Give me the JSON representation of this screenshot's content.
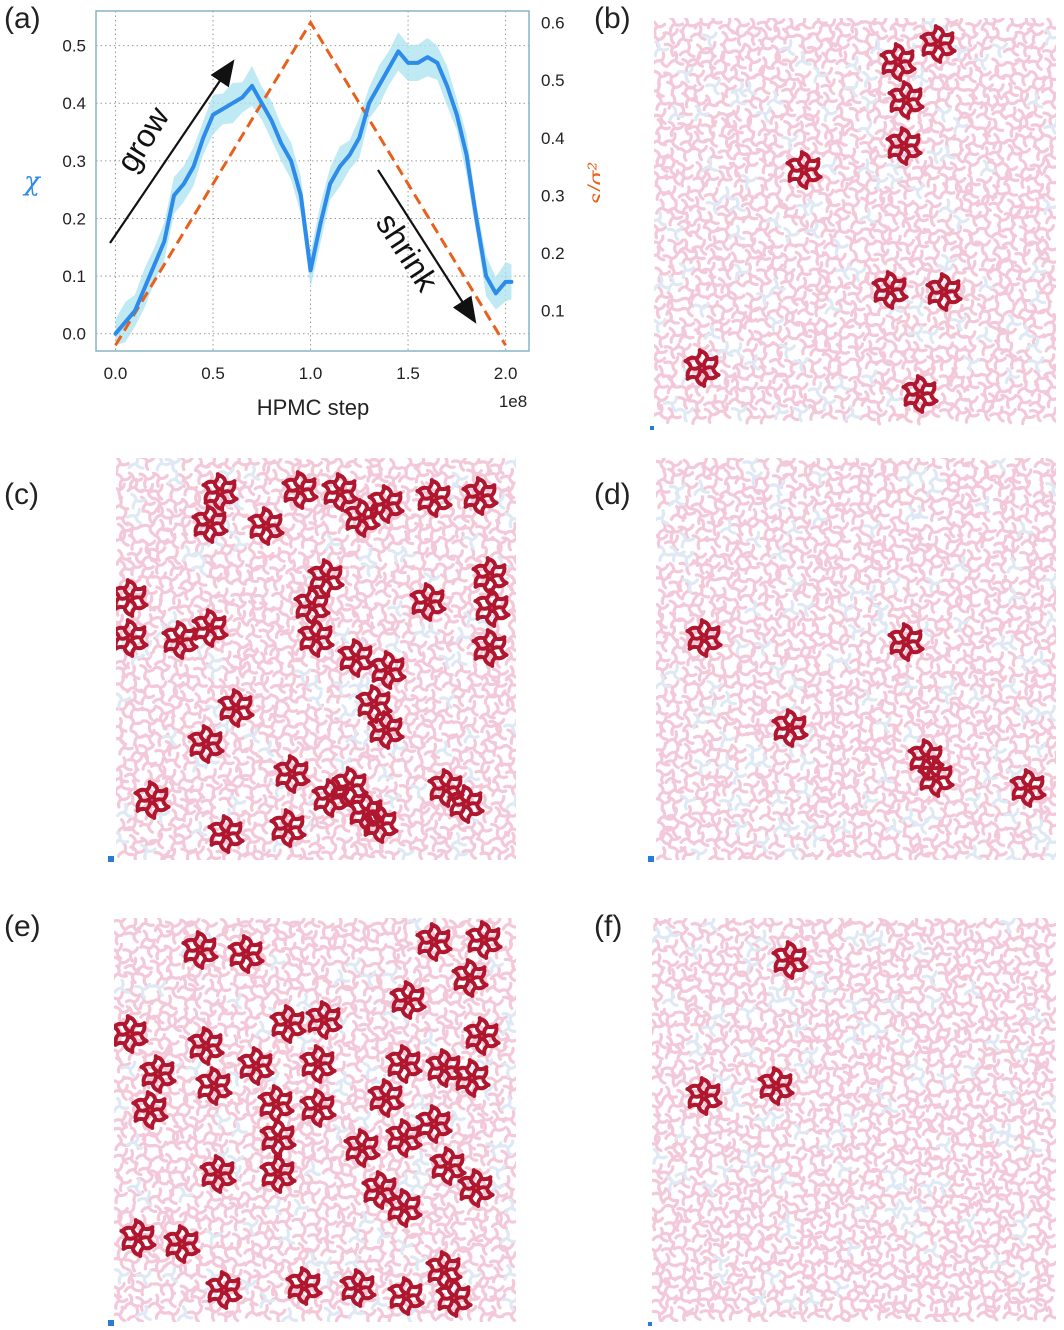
{
  "panel_labels": [
    "(a)",
    "(b)",
    "(c)",
    "(d)",
    "(e)",
    "(f)"
  ],
  "colors": {
    "chi_line": "#2e8bea",
    "chi_band": "#a9e3ef",
    "s_line": "#e8601c",
    "axis_frame": "#87b4c4",
    "grid": "#9a9a9a",
    "cluster": "#b0172e",
    "background_particles": "#f3c9da",
    "background_faint": "#dfe8f5"
  },
  "chart_data": {
    "type": "line",
    "xlabel": "HPMC step",
    "x_multiplier": "1e8",
    "ylabel_left": "χ",
    "ylabel_right": "s/σ²",
    "xlim": [
      -0.1,
      2.12
    ],
    "ylim_left": [
      -0.03,
      0.56
    ],
    "ylim_right": [
      0.03,
      0.62
    ],
    "x_ticks": [
      "0.0",
      "0.5",
      "1.0",
      "1.5",
      "2.0"
    ],
    "y_left_ticks": [
      "0.0",
      "0.1",
      "0.2",
      "0.3",
      "0.4",
      "0.5"
    ],
    "y_right_ticks": [
      "0.1",
      "0.2",
      "0.3",
      "0.4",
      "0.5",
      "0.6"
    ],
    "grid": true,
    "annotations": [
      "grow",
      "shrink"
    ],
    "series": [
      {
        "axis": "left",
        "x": [
          0.0,
          0.05,
          0.1,
          0.15,
          0.2,
          0.25,
          0.3,
          0.35,
          0.4,
          0.45,
          0.5,
          0.55,
          0.6,
          0.65,
          0.7,
          0.75,
          0.8,
          0.85,
          0.9,
          0.95,
          1.0,
          1.05,
          1.1,
          1.15,
          1.2,
          1.25,
          1.3,
          1.35,
          1.4,
          1.45,
          1.5,
          1.55,
          1.6,
          1.65,
          1.7,
          1.75,
          1.8,
          1.85,
          1.9,
          1.95,
          2.0,
          2.03
        ],
        "values": [
          0.0,
          0.02,
          0.04,
          0.08,
          0.12,
          0.16,
          0.24,
          0.26,
          0.29,
          0.34,
          0.38,
          0.39,
          0.4,
          0.41,
          0.43,
          0.4,
          0.37,
          0.33,
          0.3,
          0.24,
          0.11,
          0.19,
          0.26,
          0.29,
          0.31,
          0.34,
          0.4,
          0.43,
          0.46,
          0.49,
          0.47,
          0.47,
          0.48,
          0.47,
          0.43,
          0.38,
          0.31,
          0.2,
          0.1,
          0.07,
          0.09,
          0.09
        ]
      },
      {
        "axis": "right",
        "x": [
          0.0,
          1.0,
          2.0
        ],
        "values": [
          0.04,
          0.6,
          0.04
        ]
      }
    ]
  }
}
